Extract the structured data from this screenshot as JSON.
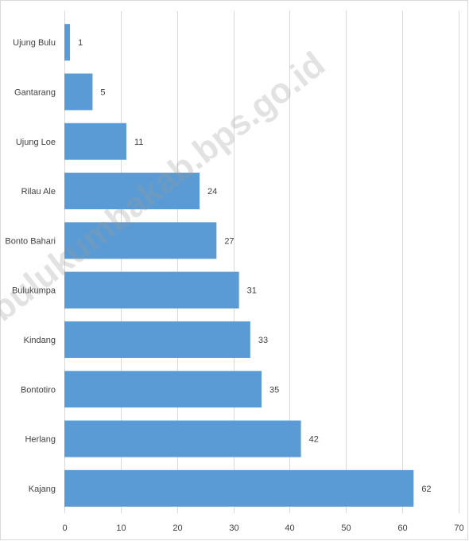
{
  "chart_data": {
    "type": "bar",
    "orientation": "horizontal",
    "categories": [
      "Ujung Bulu",
      "Gantarang",
      "Ujung Loe",
      "Rilau Ale",
      "Bonto Bahari",
      "Bulukumpa",
      "Kindang",
      "Bontotiro",
      "Herlang",
      "Kajang"
    ],
    "values": [
      1,
      5,
      11,
      24,
      27,
      31,
      33,
      35,
      42,
      62
    ],
    "xlim": [
      0,
      70
    ],
    "xticks": [
      0,
      10,
      20,
      30,
      40,
      50,
      60,
      70
    ],
    "grid": "vertical",
    "data_labels": true,
    "bar_color": "#5b9bd5"
  },
  "watermark": "//bulukumbakab.bps.go.id"
}
